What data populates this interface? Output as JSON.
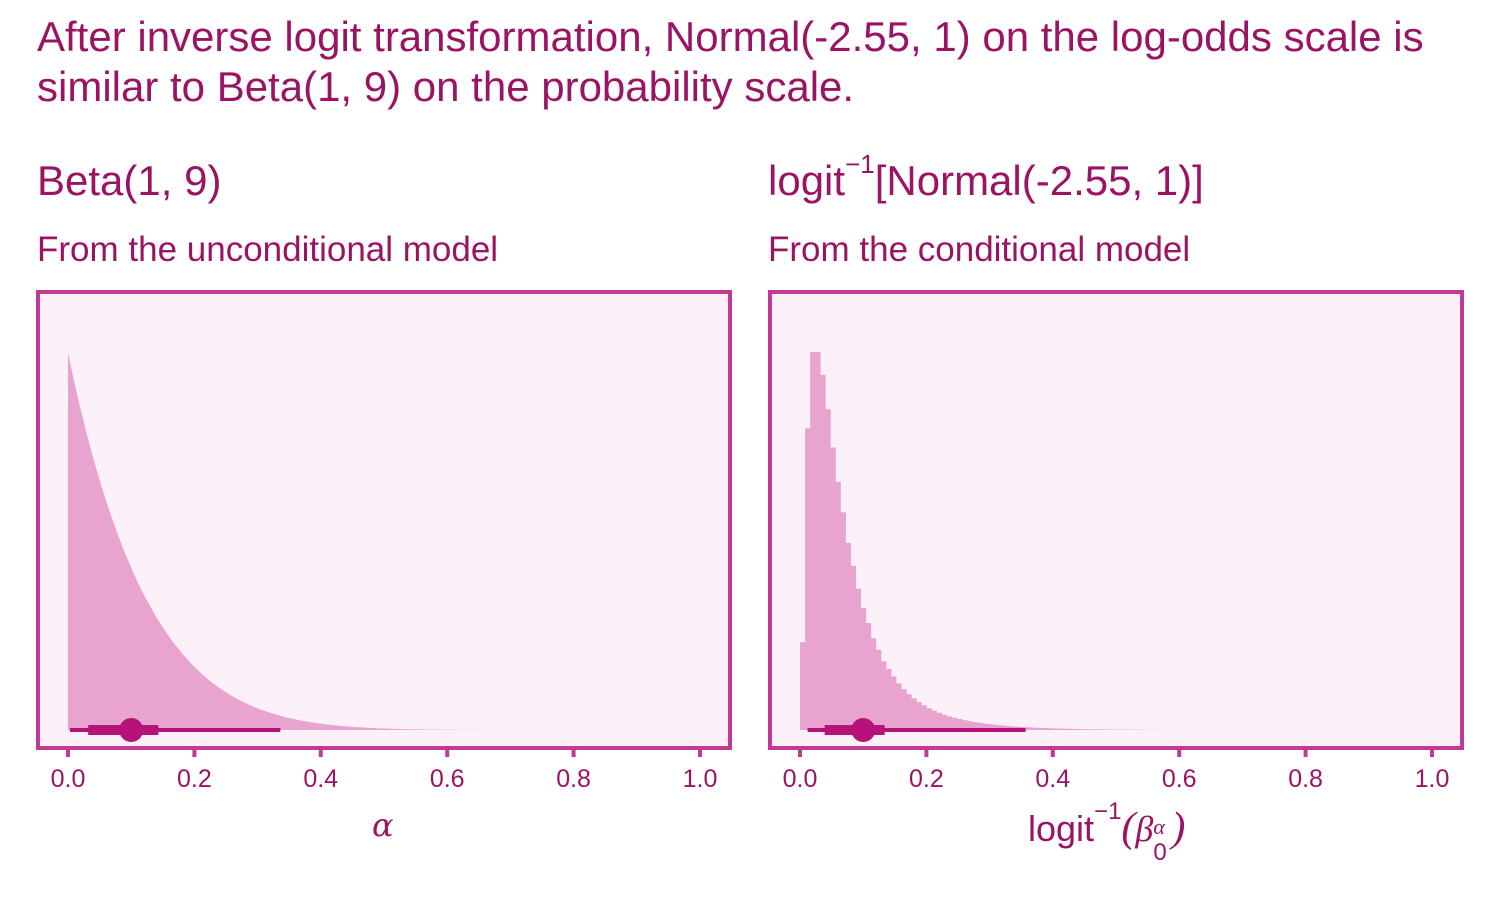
{
  "title": "After inverse logit transformation, Normal(-2.55, 1) on the log-odds scale is similar to Beta(1, 9) on the probability scale.",
  "colors": {
    "text": "#9b1464",
    "frame": "#c13a96",
    "panel_bg": "#fcf1f8",
    "fill": "#e8a4cf",
    "interval": "#b5137a"
  },
  "chart_data": [
    {
      "type": "area",
      "title": "Beta(1, 9)",
      "subtitle": "From the unconditional model",
      "xlabel": "α",
      "xlim": [
        0,
        1
      ],
      "xticks": [
        "0.0",
        "0.2",
        "0.4",
        "0.6",
        "0.8",
        "1.0"
      ],
      "density": {
        "distribution": "Beta",
        "a": 1,
        "b": 9
      },
      "interval": {
        "point": 0.1,
        "inner": [
          0.032,
          0.143
        ],
        "outer": [
          0.003,
          0.336
        ]
      }
    },
    {
      "type": "bar",
      "title_parts": [
        "logit",
        "−1",
        "[Normal(-2.55, 1)]"
      ],
      "subtitle": "From the conditional model",
      "xlabel_parts": [
        "logit",
        "−1",
        "(",
        "β",
        "α",
        "0",
        ")"
      ],
      "xlim": [
        0,
        1
      ],
      "xticks": [
        "0.0",
        "0.2",
        "0.4",
        "0.6",
        "0.8",
        "1.0"
      ],
      "bin_width": 0.008,
      "bins_start": 0,
      "bin_heights": [
        0.23,
        0.79,
        0.99,
        0.99,
        0.93,
        0.84,
        0.74,
        0.65,
        0.57,
        0.49,
        0.43,
        0.37,
        0.32,
        0.28,
        0.24,
        0.21,
        0.18,
        0.16,
        0.14,
        0.122,
        0.107,
        0.094,
        0.083,
        0.073,
        0.065,
        0.057,
        0.051,
        0.045,
        0.04,
        0.036,
        0.032,
        0.029,
        0.026,
        0.023,
        0.021,
        0.019,
        0.017,
        0.0155,
        0.014,
        0.0125,
        0.0113,
        0.0102,
        0.0092,
        0.0083,
        0.0075,
        0.0068,
        0.0061,
        0.0055,
        0.005,
        0.0045,
        0.0041,
        0.0037,
        0.0033,
        0.003,
        0.0027,
        0.0024,
        0.0022,
        0.002,
        0.0018,
        0.0016,
        0.0014,
        0.0013,
        0.0012,
        0.0011,
        0.001,
        0.0009,
        0.0008,
        0.0007,
        0.0006,
        0.0005,
        0.0004,
        0.0003,
        0.0002,
        0.0001
      ],
      "interval": {
        "point": 0.1,
        "inner": [
          0.039,
          0.134
        ],
        "outer": [
          0.012,
          0.357
        ]
      }
    }
  ]
}
